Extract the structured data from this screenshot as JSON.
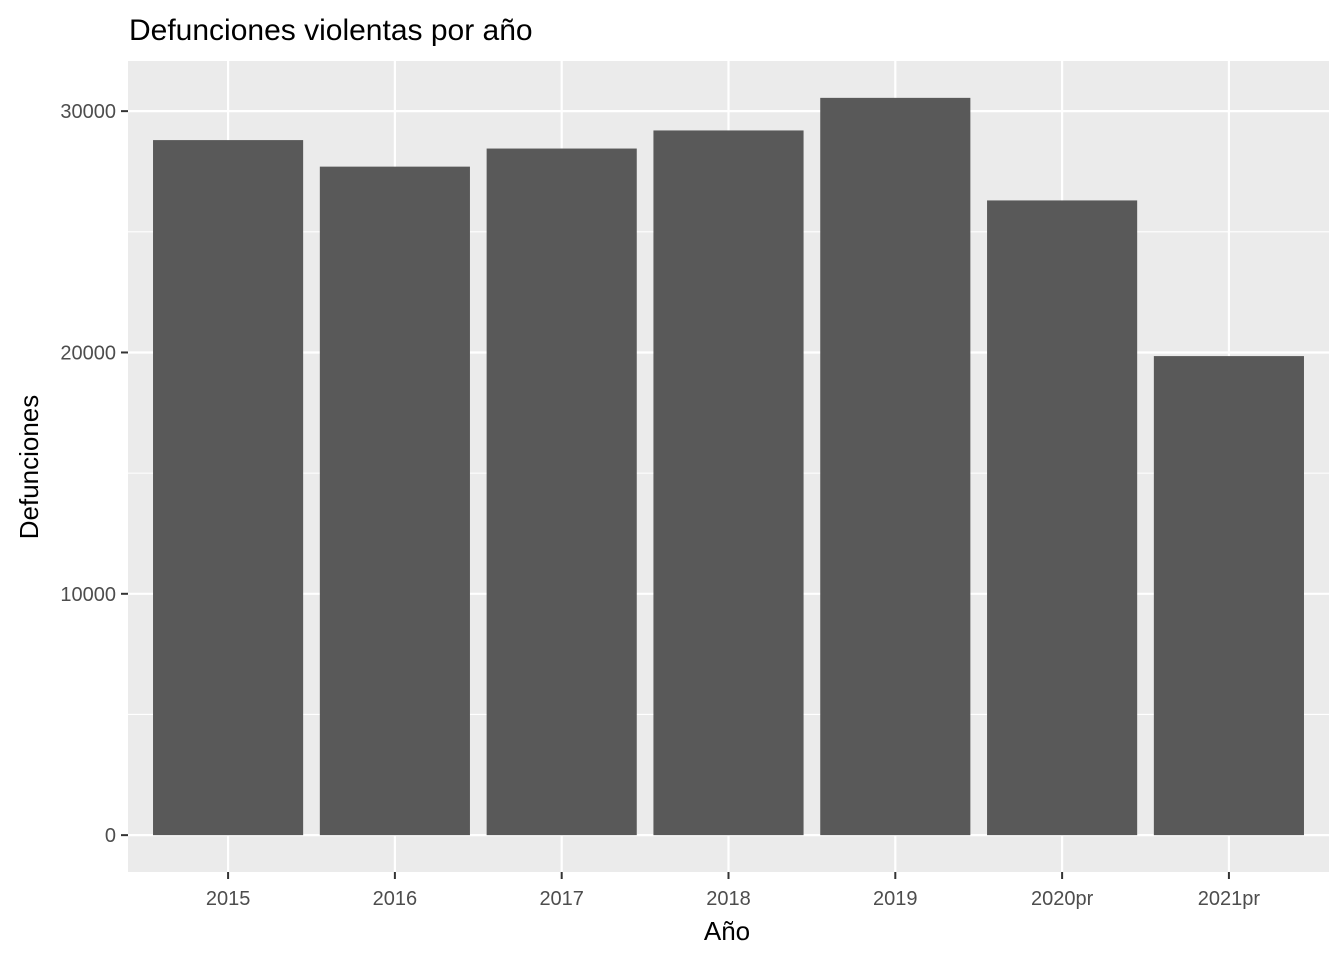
{
  "chart_data": {
    "type": "bar",
    "title": "Defunciones violentas por año",
    "xlabel": "Año",
    "ylabel": "Defunciones",
    "categories": [
      "2015",
      "2016",
      "2017",
      "2018",
      "2019",
      "2020pr",
      "2021pr"
    ],
    "values": [
      28800,
      27700,
      28450,
      29200,
      30550,
      26300,
      19850
    ],
    "ylim": [
      -1527.5,
      32077.5
    ],
    "yticks": [
      0,
      10000,
      20000,
      30000
    ],
    "ytick_labels": [
      "0",
      "10000",
      "20000",
      "30000"
    ],
    "grid": true,
    "legend": "none",
    "colors": {
      "bar": "#595959",
      "panel_background": "#ebebeb",
      "grid": "#ffffff",
      "tick_text": "#4d4d4d",
      "tick_mark": "#333333"
    }
  }
}
